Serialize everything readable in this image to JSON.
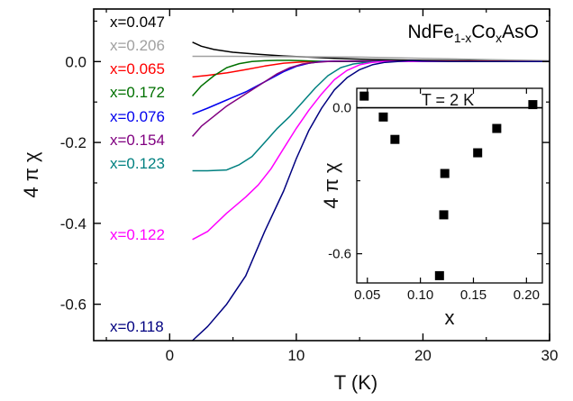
{
  "chart_data": [
    {
      "type": "line",
      "title": "NdFe1-xCoxAsO",
      "title_parts": {
        "base": "NdFe",
        "sub1": "1-x",
        "mid": "Co",
        "sub2": "x",
        "tail": "AsO"
      },
      "xlabel": "T (K)",
      "ylabel": "4 π χ",
      "xlim": [
        -6,
        30
      ],
      "ylim": [
        -0.69,
        0.13
      ],
      "xticks": [
        0,
        10,
        20,
        30
      ],
      "xtick_labels": [
        "0",
        "10",
        "20",
        "30"
      ],
      "yticks": [
        0.0,
        -0.2,
        -0.4,
        -0.6
      ],
      "ytick_labels": [
        "0.0",
        "-0.2",
        "-0.4",
        "-0.6"
      ],
      "grid": false,
      "legend": "labels in upper-left, stacked",
      "series": [
        {
          "name": "x=0.047",
          "color": "#000000",
          "x": [
            1.8,
            2.5,
            3.5,
            5,
            7,
            9,
            11,
            13,
            16,
            20,
            25,
            30
          ],
          "y": [
            0.048,
            0.038,
            0.03,
            0.023,
            0.018,
            0.014,
            0.011,
            0.008,
            0.005,
            0.003,
            0.002,
            0.001
          ]
        },
        {
          "name": "x=0.206",
          "color": "#a0a0a0",
          "x": [
            1.8,
            5,
            10,
            15,
            20,
            25,
            30
          ],
          "y": [
            0.013,
            0.013,
            0.012,
            0.011,
            0.008,
            0.005,
            0.002
          ]
        },
        {
          "name": "x=0.065",
          "color": "#ff0000",
          "x": [
            1.8,
            3,
            4.5,
            6,
            7.5,
            9,
            10.5,
            12,
            13.5,
            16,
            20,
            25,
            30
          ],
          "y": [
            -0.038,
            -0.034,
            -0.028,
            -0.02,
            -0.011,
            -0.004,
            -0.001,
            0.0,
            0.001,
            0.001,
            0.001,
            0.001,
            0.0
          ]
        },
        {
          "name": "x=0.172",
          "color": "#007000",
          "x": [
            1.8,
            2.5,
            3.5,
            4.5,
            5.5,
            6.5,
            7.5,
            8.5,
            9.5,
            10.5,
            11.5,
            12.5,
            14,
            16,
            20,
            25,
            30
          ],
          "y": [
            -0.085,
            -0.06,
            -0.035,
            -0.015,
            -0.005,
            0.0,
            0.002,
            0.003,
            0.003,
            0.002,
            0.001,
            0.0,
            0.0,
            0.0,
            0.0,
            0.0,
            0.0
          ]
        },
        {
          "name": "x=0.076",
          "color": "#0000ee",
          "x": [
            1.8,
            3,
            4.5,
            6,
            7.5,
            9,
            10,
            11,
            12,
            13,
            14,
            16,
            20,
            25,
            30
          ],
          "y": [
            -0.13,
            -0.115,
            -0.095,
            -0.075,
            -0.05,
            -0.025,
            -0.012,
            -0.004,
            0.0,
            0.001,
            0.001,
            0.001,
            0.0,
            0.0,
            0.0
          ]
        },
        {
          "name": "x=0.154",
          "color": "#800080",
          "x": [
            1.8,
            2.5,
            3.5,
            4.5,
            5.5,
            6.5,
            7.5,
            8.5,
            9.5,
            10.5,
            11.5,
            12.5,
            13.5,
            14.5,
            16,
            20,
            25,
            30
          ],
          "y": [
            -0.185,
            -0.16,
            -0.135,
            -0.11,
            -0.09,
            -0.07,
            -0.05,
            -0.03,
            -0.015,
            -0.006,
            -0.002,
            0.0,
            0.001,
            0.001,
            0.001,
            0.0,
            0.0,
            0.0
          ]
        },
        {
          "name": "x=0.123",
          "color": "#008080",
          "x": [
            1.8,
            3,
            4.5,
            5.5,
            6.5,
            7.5,
            8.5,
            9.5,
            10.5,
            11.5,
            12.5,
            13.5,
            14.5,
            15.5,
            16.5,
            18,
            20,
            25,
            30
          ],
          "y": [
            -0.27,
            -0.27,
            -0.268,
            -0.255,
            -0.235,
            -0.2,
            -0.165,
            -0.135,
            -0.1,
            -0.065,
            -0.035,
            -0.015,
            -0.006,
            -0.002,
            0.0,
            0.0,
            0.0,
            0.0,
            0.0
          ]
        },
        {
          "name": "x=0.122",
          "color": "#ff00ff",
          "x": [
            1.8,
            3,
            4.5,
            6,
            7,
            8,
            9,
            10,
            11,
            12,
            13,
            14,
            15,
            16,
            17,
            18,
            20,
            25,
            30
          ],
          "y": [
            -0.44,
            -0.42,
            -0.375,
            -0.335,
            -0.305,
            -0.265,
            -0.215,
            -0.165,
            -0.12,
            -0.08,
            -0.045,
            -0.022,
            -0.008,
            -0.002,
            0.0,
            0.0,
            0.0,
            0.0,
            0.0
          ]
        },
        {
          "name": "x=0.118",
          "color": "#000080",
          "x": [
            1.8,
            3,
            4.5,
            6,
            7.5,
            9,
            10,
            11,
            12,
            13,
            14,
            15,
            16,
            17,
            18,
            19,
            20,
            22,
            25,
            30
          ],
          "y": [
            -0.69,
            -0.655,
            -0.6,
            -0.53,
            -0.42,
            -0.32,
            -0.24,
            -0.17,
            -0.115,
            -0.07,
            -0.04,
            -0.02,
            -0.008,
            -0.002,
            0.0,
            0.002,
            0.001,
            0.0,
            0.0,
            0.0
          ]
        }
      ]
    },
    {
      "type": "scatter",
      "annotation": "T = 2 K",
      "xlabel": "x",
      "ylabel": "4 π χ",
      "xlim": [
        0.04,
        0.215
      ],
      "ylim": [
        -0.72,
        0.08
      ],
      "xticks": [
        0.05,
        0.1,
        0.15,
        0.2
      ],
      "xtick_labels": [
        "0.05",
        "0.10",
        "0.15",
        "0.20"
      ],
      "yticks": [
        0.0,
        -0.6
      ],
      "ytick_labels": [
        "0.0",
        "-0.6"
      ],
      "reference_line_y": 0.0,
      "color": "#000000",
      "x": [
        0.047,
        0.065,
        0.076,
        0.118,
        0.122,
        0.123,
        0.154,
        0.172,
        0.206
      ],
      "y": [
        0.048,
        -0.038,
        -0.13,
        -0.69,
        -0.44,
        -0.27,
        -0.185,
        -0.085,
        0.013
      ]
    }
  ]
}
